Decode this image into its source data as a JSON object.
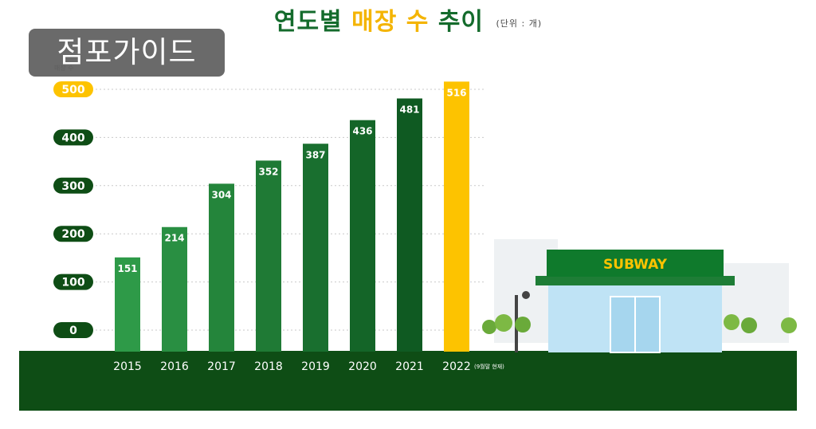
{
  "header": {
    "title_part1": "연도별",
    "title_part2": "매장 수",
    "title_part3": "추이",
    "unit": "(단위 : 개)"
  },
  "watermark": {
    "text": "점포가이드"
  },
  "colors": {
    "bar_dark": "#0f5a22",
    "bar_light": "#2e9a48",
    "highlight": "#fdc300",
    "ground": "#0e4d15",
    "title_green": "#146b2c",
    "title_yellow": "#f4b400"
  },
  "illustration": {
    "store_sign": "SUBWAY"
  },
  "chart_data": {
    "type": "bar",
    "categories": [
      "2015",
      "2016",
      "2017",
      "2018",
      "2019",
      "2020",
      "2021",
      "2022"
    ],
    "values": [
      151,
      214,
      304,
      352,
      387,
      436,
      481,
      516
    ],
    "value_labels": [
      "151",
      "214",
      "304",
      "352",
      "387",
      "436",
      "481",
      "516"
    ],
    "category_note": {
      "index": 7,
      "text": "(9월말 현재)"
    },
    "highlight_index": 7,
    "yticks": [
      "0",
      "100",
      "200",
      "300",
      "400",
      "500"
    ],
    "ylim": [
      0,
      500
    ],
    "ylabel": "매장 수",
    "grid": true
  }
}
